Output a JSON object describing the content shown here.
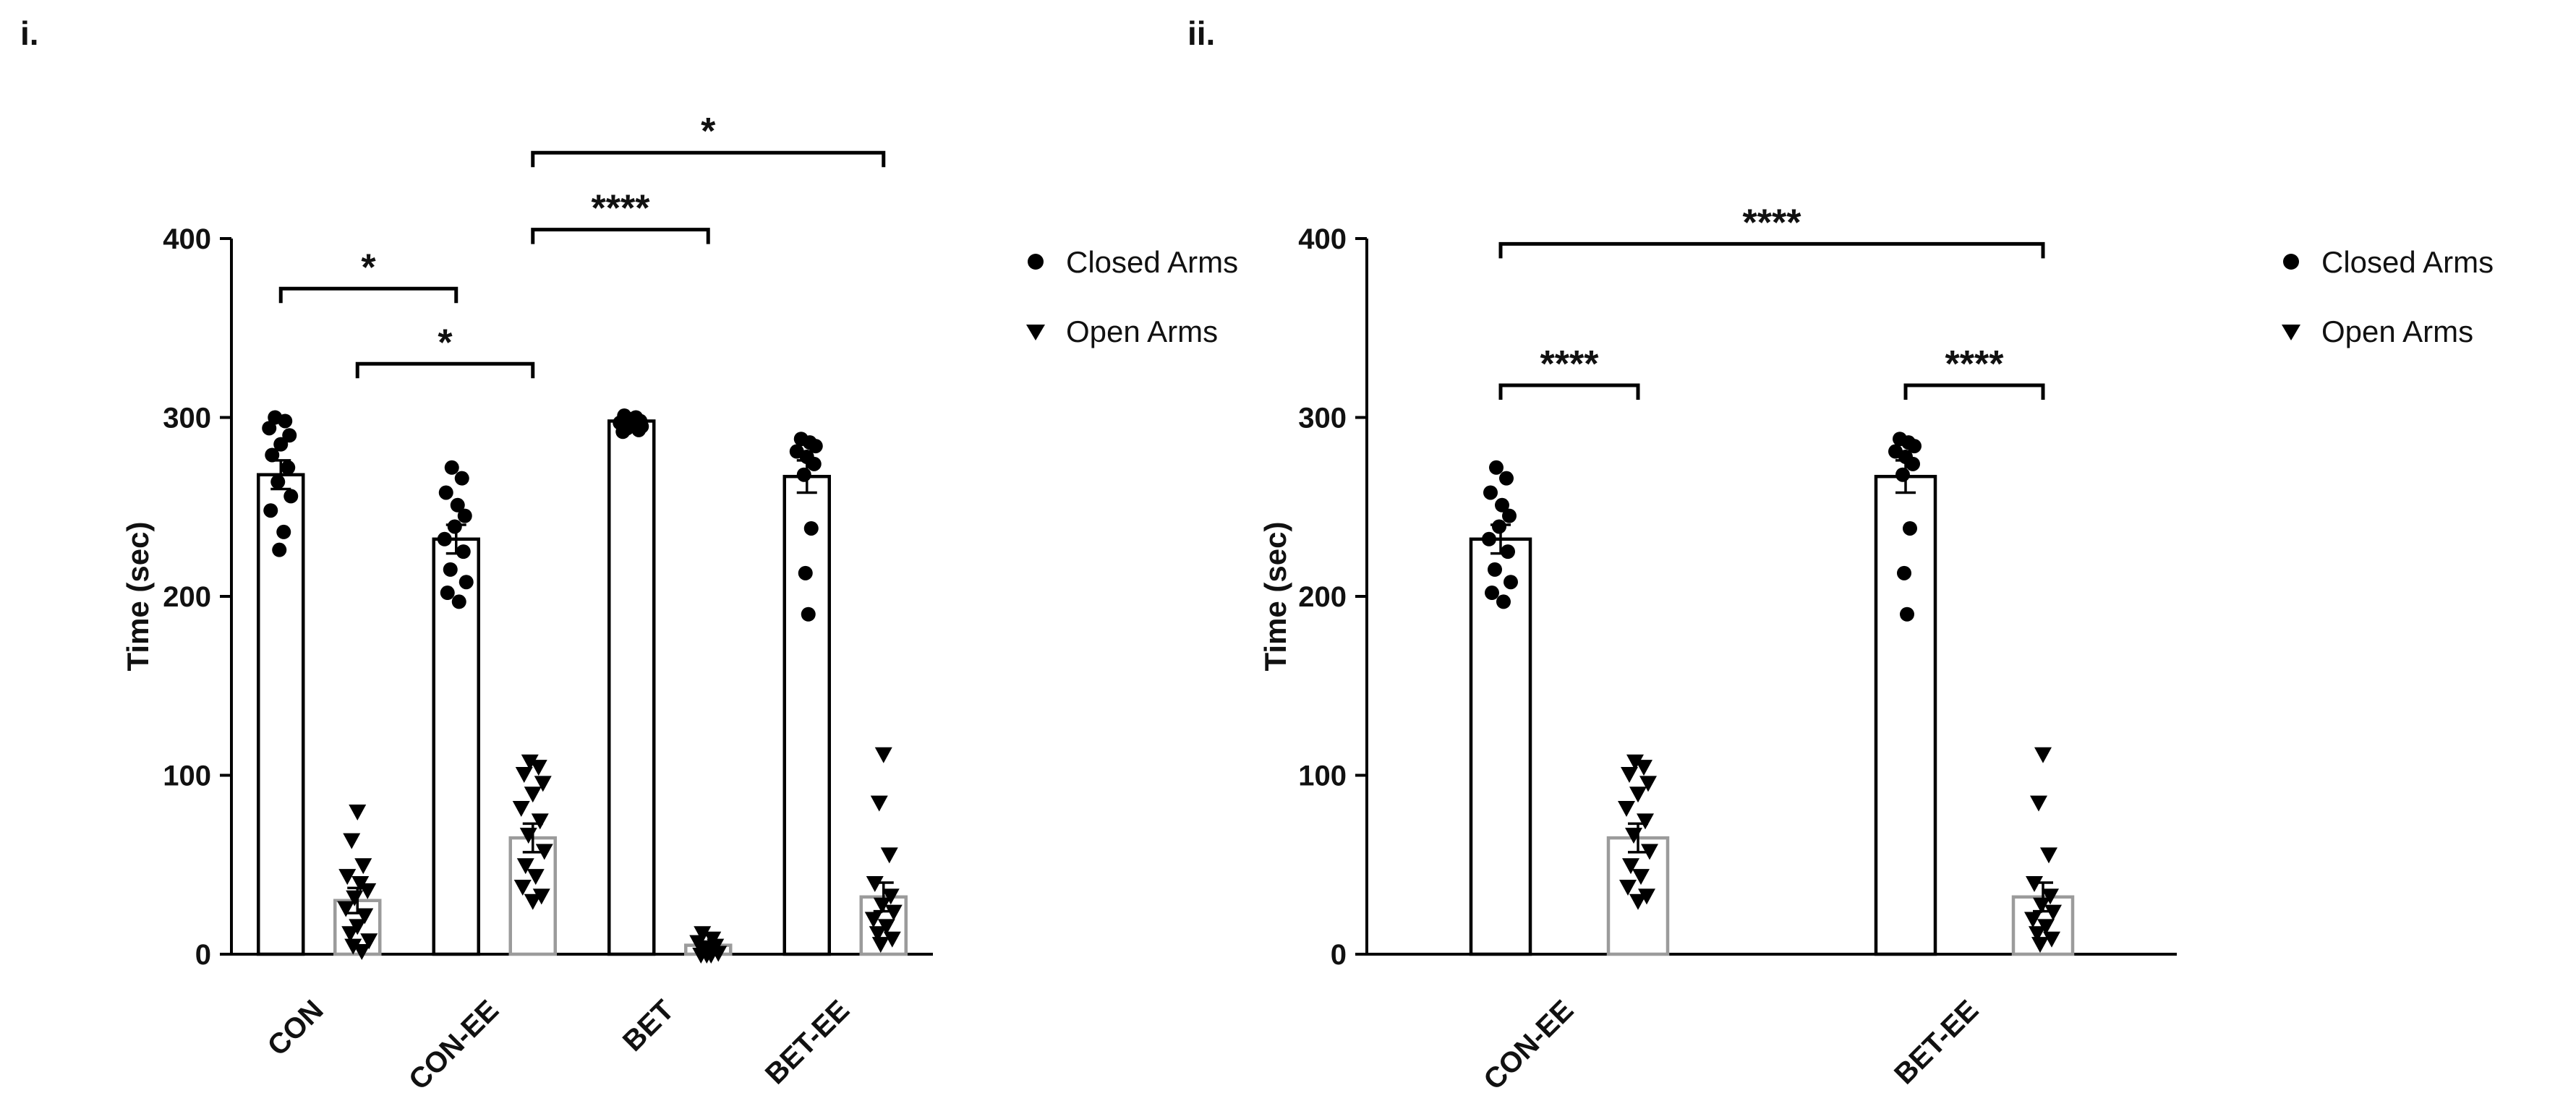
{
  "figure": {
    "background": "#ffffff",
    "axis_color": "#000000",
    "marker_color": "#000000",
    "closed_bar_outline": "#000000",
    "open_bar_outline": "#9b9b9b"
  },
  "chart_data": [
    {
      "type": "bar",
      "panel_label": "i.",
      "ylabel": "Time (sec)",
      "ylim": [
        0,
        400
      ],
      "yticks": [
        0,
        100,
        200,
        300,
        400
      ],
      "categories": [
        "CON",
        "CON-EE",
        "BET",
        "BET-EE"
      ],
      "series": [
        {
          "name": "Closed Arms",
          "marker": "circle",
          "means": [
            268,
            232,
            298,
            267
          ],
          "sem": [
            8,
            8,
            2,
            9
          ],
          "points": [
            [
              [
                -8,
                300
              ],
              [
                6,
                298
              ],
              [
                -16,
                294
              ],
              [
                12,
                290
              ],
              [
                0,
                285
              ],
              [
                -12,
                279
              ],
              [
                10,
                272
              ],
              [
                -4,
                264
              ],
              [
                14,
                256
              ],
              [
                -14,
                248
              ],
              [
                4,
                236
              ],
              [
                -2,
                226
              ]
            ],
            [
              [
                -6,
                272
              ],
              [
                8,
                266
              ],
              [
                -14,
                258
              ],
              [
                2,
                251
              ],
              [
                12,
                245
              ],
              [
                -2,
                239
              ],
              [
                -16,
                232
              ],
              [
                10,
                225
              ],
              [
                -8,
                215
              ],
              [
                14,
                208
              ],
              [
                -12,
                202
              ],
              [
                4,
                197
              ]
            ],
            [
              [
                -10,
                301
              ],
              [
                6,
                300
              ],
              [
                -2,
                299
              ],
              [
                12,
                298
              ],
              [
                -16,
                297
              ],
              [
                2,
                296
              ],
              [
                14,
                295
              ],
              [
                -6,
                294
              ],
              [
                10,
                293
              ],
              [
                -12,
                292
              ]
            ],
            [
              [
                -8,
                288
              ],
              [
                4,
                286
              ],
              [
                12,
                284
              ],
              [
                -14,
                281
              ],
              [
                0,
                278
              ],
              [
                10,
                274
              ],
              [
                -4,
                268
              ],
              [
                6,
                238
              ],
              [
                -2,
                213
              ],
              [
                2,
                190
              ]
            ]
          ]
        },
        {
          "name": "Open Arms",
          "marker": "triangle",
          "means": [
            30,
            65,
            5,
            32
          ],
          "sem": [
            7,
            8,
            2,
            8
          ],
          "points": [
            [
              [
                0,
                80
              ],
              [
                -8,
                64
              ],
              [
                8,
                50
              ],
              [
                -14,
                44
              ],
              [
                4,
                40
              ],
              [
                14,
                36
              ],
              [
                -4,
                32
              ],
              [
                -16,
                26
              ],
              [
                10,
                22
              ],
              [
                0,
                16
              ],
              [
                -10,
                12
              ],
              [
                16,
                8
              ],
              [
                -6,
                5
              ],
              [
                6,
                2
              ]
            ],
            [
              [
                -4,
                108
              ],
              [
                8,
                105
              ],
              [
                -12,
                101
              ],
              [
                14,
                96
              ],
              [
                0,
                90
              ],
              [
                -16,
                82
              ],
              [
                10,
                75
              ],
              [
                -6,
                67
              ],
              [
                16,
                58
              ],
              [
                -10,
                50
              ],
              [
                4,
                44
              ],
              [
                -14,
                38
              ],
              [
                12,
                33
              ],
              [
                0,
                30
              ]
            ],
            [
              [
                -8,
                12
              ],
              [
                6,
                9
              ],
              [
                -14,
                7
              ],
              [
                10,
                5
              ],
              [
                0,
                4
              ],
              [
                -4,
                2
              ],
              [
                14,
                1
              ],
              [
                -10,
                0
              ],
              [
                4,
                0
              ],
              [
                -2,
                0
              ]
            ],
            [
              [
                0,
                112
              ],
              [
                -6,
                85
              ],
              [
                8,
                56
              ],
              [
                -12,
                40
              ],
              [
                10,
                33
              ],
              [
                -2,
                28
              ],
              [
                14,
                24
              ],
              [
                -14,
                20
              ],
              [
                4,
                16
              ],
              [
                -8,
                12
              ],
              [
                12,
                9
              ],
              [
                -4,
                6
              ]
            ]
          ]
        }
      ],
      "significance": [
        {
          "label": "*",
          "from": [
            0,
            0
          ],
          "to": [
            1,
            0
          ],
          "y": 372
        },
        {
          "label": "*",
          "from": [
            0,
            1
          ],
          "to": [
            1,
            1
          ],
          "y": 330
        },
        {
          "label": "****",
          "from": [
            1,
            1
          ],
          "to": [
            2,
            1
          ],
          "y": 405
        },
        {
          "label": "*",
          "from": [
            1,
            1
          ],
          "to": [
            3,
            1
          ],
          "y": 448
        }
      ],
      "legend": [
        {
          "marker": "circle",
          "label": "Closed Arms"
        },
        {
          "marker": "triangle",
          "label": "Open Arms"
        }
      ]
    },
    {
      "type": "bar",
      "panel_label": "ii.",
      "ylabel": "Time (sec)",
      "ylim": [
        0,
        400
      ],
      "yticks": [
        0,
        100,
        200,
        300,
        400
      ],
      "categories": [
        "CON-EE",
        "BET-EE"
      ],
      "series": [
        {
          "name": "Closed Arms",
          "marker": "circle",
          "means": [
            232,
            267
          ],
          "sem": [
            8,
            9
          ],
          "points": [
            [
              [
                -6,
                272
              ],
              [
                8,
                266
              ],
              [
                -14,
                258
              ],
              [
                2,
                251
              ],
              [
                12,
                245
              ],
              [
                -2,
                239
              ],
              [
                -16,
                232
              ],
              [
                10,
                225
              ],
              [
                -8,
                215
              ],
              [
                14,
                208
              ],
              [
                -12,
                202
              ],
              [
                4,
                197
              ]
            ],
            [
              [
                -8,
                288
              ],
              [
                4,
                286
              ],
              [
                12,
                284
              ],
              [
                -14,
                281
              ],
              [
                0,
                278
              ],
              [
                10,
                274
              ],
              [
                -4,
                268
              ],
              [
                6,
                238
              ],
              [
                -2,
                213
              ],
              [
                2,
                190
              ]
            ]
          ]
        },
        {
          "name": "Open Arms",
          "marker": "triangle",
          "means": [
            65,
            32
          ],
          "sem": [
            8,
            8
          ],
          "points": [
            [
              [
                -4,
                108
              ],
              [
                8,
                105
              ],
              [
                -12,
                101
              ],
              [
                14,
                96
              ],
              [
                0,
                90
              ],
              [
                -16,
                82
              ],
              [
                10,
                75
              ],
              [
                -6,
                67
              ],
              [
                16,
                58
              ],
              [
                -10,
                50
              ],
              [
                4,
                44
              ],
              [
                -14,
                38
              ],
              [
                12,
                33
              ],
              [
                0,
                30
              ]
            ],
            [
              [
                0,
                112
              ],
              [
                -6,
                85
              ],
              [
                8,
                56
              ],
              [
                -12,
                40
              ],
              [
                10,
                33
              ],
              [
                -2,
                28
              ],
              [
                14,
                24
              ],
              [
                -14,
                20
              ],
              [
                4,
                16
              ],
              [
                -8,
                12
              ],
              [
                12,
                9
              ],
              [
                -4,
                6
              ]
            ]
          ]
        }
      ],
      "significance": [
        {
          "label": "****",
          "from": [
            0,
            0
          ],
          "to": [
            0,
            1
          ],
          "y": 318
        },
        {
          "label": "****",
          "from": [
            1,
            0
          ],
          "to": [
            1,
            1
          ],
          "y": 318
        },
        {
          "label": "****",
          "from": [
            0,
            0
          ],
          "to": [
            1,
            1
          ],
          "y": 397
        }
      ],
      "legend": [
        {
          "marker": "circle",
          "label": "Closed Arms"
        },
        {
          "marker": "triangle",
          "label": "Open Arms"
        }
      ]
    }
  ]
}
